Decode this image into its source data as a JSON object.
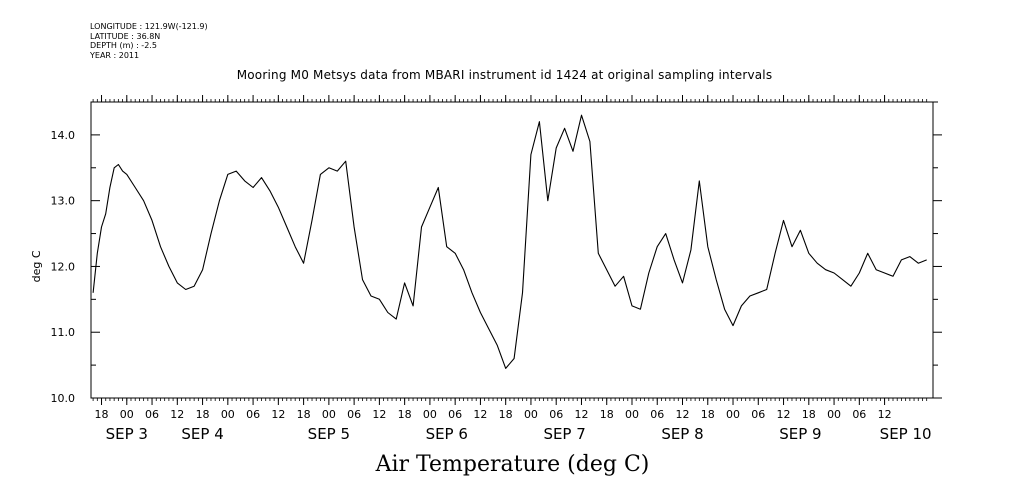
{
  "header": {
    "longitude": "LONGITUDE : 121.9W(-121.9)",
    "latitude": "LATITUDE : 36.8N",
    "depth": "DEPTH (m) : -2.5",
    "year": "YEAR : 2011"
  },
  "chart_data": {
    "type": "line",
    "title": "Mooring M0 Metsys data from MBARI instrument id 1424 at original sampling intervals",
    "xlabel": "Air Temperature (deg C)",
    "ylabel": "deg C",
    "ylim": [
      10.0,
      14.5
    ],
    "yticks": [
      "10.0",
      "11.0",
      "12.0",
      "13.0",
      "14.0"
    ],
    "x_units": "hours since SEP 2 18:00",
    "xlim": [
      -2.5,
      197.5
    ],
    "hour_ticks": [
      "18",
      "00",
      "06",
      "12",
      "18",
      "00",
      "06",
      "12",
      "18",
      "00",
      "06",
      "12",
      "18",
      "00",
      "06",
      "12",
      "18",
      "00",
      "06",
      "12",
      "18",
      "00",
      "06",
      "12",
      "18",
      "00",
      "06",
      "12",
      "18",
      "00",
      "06",
      "12"
    ],
    "day_labels": [
      {
        "label": "SEP  3",
        "hour": 6
      },
      {
        "label": "SEP  4",
        "hour": 24
      },
      {
        "label": "SEP  5",
        "hour": 54
      },
      {
        "label": "SEP  6",
        "hour": 82
      },
      {
        "label": "SEP  7",
        "hour": 110
      },
      {
        "label": "SEP  8",
        "hour": 138
      },
      {
        "label": "SEP  9",
        "hour": 166
      },
      {
        "label": "SEP 10",
        "hour": 191
      }
    ],
    "grid": false,
    "series": [
      {
        "color": "#000000",
        "x": [
          -2,
          -1,
          0,
          1,
          2,
          3,
          4,
          5,
          6,
          8,
          10,
          12,
          14,
          16,
          18,
          20,
          22,
          24,
          26,
          28,
          30,
          32,
          34,
          36,
          38,
          40,
          42,
          44,
          46,
          48,
          50,
          52,
          54,
          56,
          58,
          60,
          62,
          64,
          66,
          68,
          70,
          72,
          74,
          76,
          78,
          80,
          82,
          84,
          86,
          88,
          90,
          92,
          94,
          96,
          98,
          100,
          102,
          104,
          106,
          108,
          110,
          112,
          114,
          116,
          118,
          120,
          122,
          124,
          126,
          128,
          130,
          132,
          134,
          136,
          138,
          140,
          142,
          144,
          146,
          148,
          150,
          152,
          154,
          156,
          158,
          160,
          162,
          164,
          166,
          168,
          170,
          172,
          174,
          176,
          178,
          180,
          182,
          184,
          186,
          188,
          190,
          192,
          194,
          196
        ],
        "y": [
          11.6,
          12.2,
          12.6,
          12.8,
          13.2,
          13.5,
          13.55,
          13.45,
          13.4,
          13.2,
          13.0,
          12.7,
          12.3,
          12.0,
          11.75,
          11.65,
          11.7,
          11.95,
          12.5,
          13.0,
          13.4,
          13.45,
          13.3,
          13.2,
          13.35,
          13.15,
          12.9,
          12.6,
          12.3,
          12.05,
          12.7,
          13.4,
          13.5,
          13.45,
          13.6,
          12.6,
          11.8,
          11.55,
          11.5,
          11.3,
          11.2,
          11.75,
          11.4,
          12.6,
          12.9,
          13.2,
          12.3,
          12.2,
          11.95,
          11.6,
          11.3,
          11.05,
          10.8,
          10.45,
          10.6,
          11.6,
          13.7,
          14.2,
          13.0,
          13.8,
          14.1,
          13.75,
          14.3,
          13.9,
          12.2,
          11.95,
          11.7,
          11.85,
          11.4,
          11.35,
          11.9,
          12.3,
          12.5,
          12.1,
          11.75,
          12.25,
          13.3,
          12.3,
          11.8,
          11.35,
          11.1,
          11.4,
          11.55,
          11.6,
          11.65,
          12.2,
          12.7,
          12.3,
          12.55,
          12.2,
          12.05,
          11.95,
          11.9,
          11.8,
          11.7,
          11.9,
          12.2,
          11.95,
          11.9,
          11.85,
          12.1,
          12.15,
          12.05,
          12.1
        ]
      }
    ]
  }
}
